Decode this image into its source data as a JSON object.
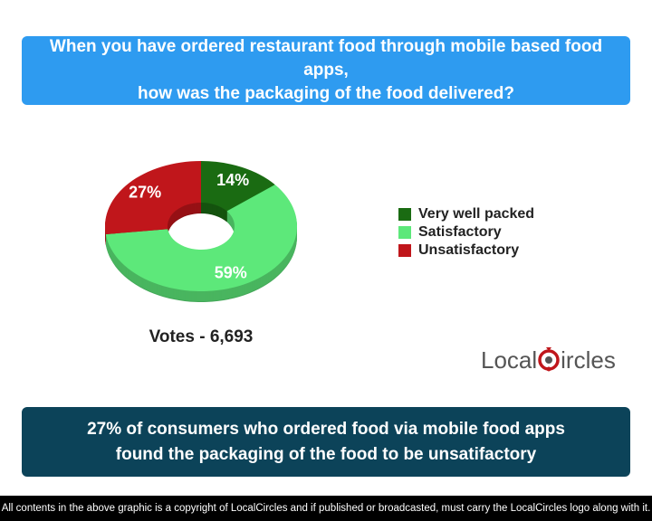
{
  "question": {
    "line1": "When you have ordered restaurant food through mobile based food apps,",
    "line2": "how was the packaging of the food delivered?"
  },
  "chart_data": {
    "type": "pie",
    "categories": [
      "Very well packed",
      "Satisfactory",
      "Unsatisfactory"
    ],
    "values": [
      14,
      59,
      27
    ],
    "value_labels": [
      "14%",
      "59%",
      "27%"
    ],
    "colors": [
      "#1a6b12",
      "#5de87a",
      "#c0161b"
    ],
    "legend_placement": "right",
    "title": ""
  },
  "votes": "Votes - 6,693",
  "logo": {
    "part1": "Local",
    "part2": "ircles"
  },
  "summary": {
    "line1": "27% of consumers who ordered food via mobile food apps",
    "line2": "found the packaging of the food to be unsatifactory"
  },
  "footer": "All contents in the above graphic is a copyright of LocalCircles and if published or broadcasted, must carry the LocalCircles logo along with it."
}
